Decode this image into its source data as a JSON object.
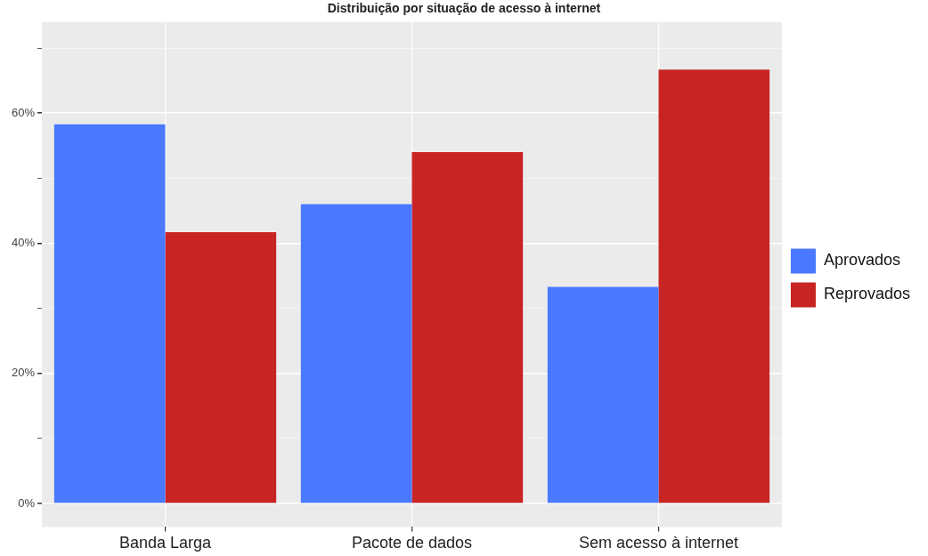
{
  "chart_data": {
    "type": "bar",
    "title": "Distribuição por situação de acesso à internet",
    "categories": [
      "Banda Larga",
      "Pacote de dados",
      "Sem acesso à internet"
    ],
    "series": [
      {
        "name": "Aprovados",
        "color": "#4a78ff",
        "values": [
          58.3,
          46,
          33.3
        ]
      },
      {
        "name": "Reprovados",
        "color": "#c82424",
        "values": [
          41.7,
          54,
          66.7
        ]
      }
    ],
    "ylim": [
      -3.6,
      74
    ],
    "yticks": [
      {
        "value": 0,
        "label": "0%"
      },
      {
        "value": 10,
        "label": null
      },
      {
        "value": 20,
        "label": "20%"
      },
      {
        "value": 30,
        "label": null
      },
      {
        "value": 40,
        "label": "40%"
      },
      {
        "value": 50,
        "label": null
      },
      {
        "value": 60,
        "label": "60%"
      },
      {
        "value": 70,
        "label": null
      }
    ],
    "grid": true,
    "legend": "right"
  }
}
